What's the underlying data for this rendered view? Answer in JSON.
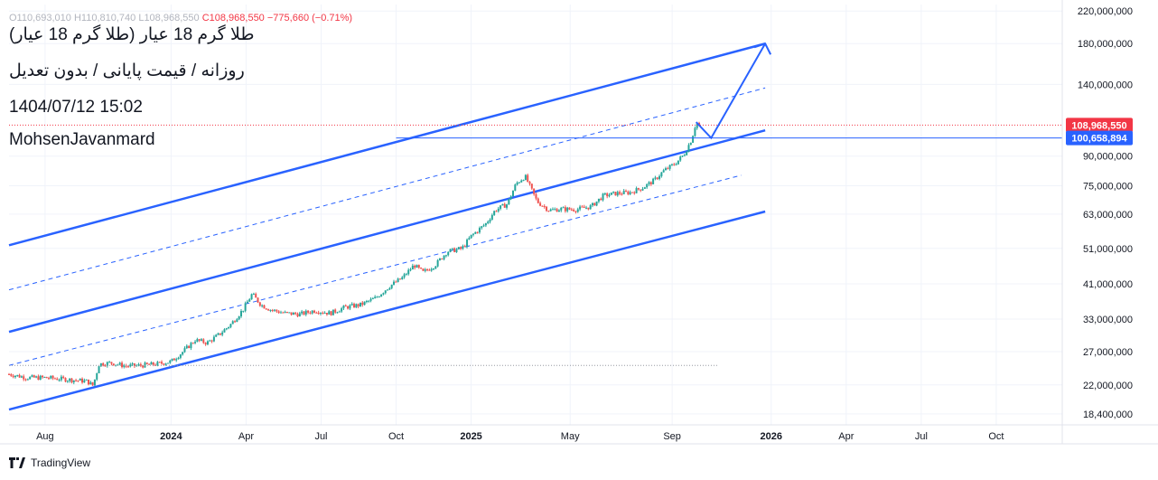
{
  "header": {
    "title": "طلا گرم 18 عیار (طلا گرم 18 عیار)",
    "subtitle": "روزانه / قیمت پایانی / بدون تعدیل",
    "datetime": "1404/07/12 15:02",
    "author": "MohsenJavanmard",
    "ohlc": {
      "prefix": "O110,693,010  H110,810,740  L108,968,550",
      "close": "C108,968,550",
      "change": "−775,660 (−0.71%)"
    }
  },
  "footer": {
    "brand": "TradingView"
  },
  "colors": {
    "up": "#26a69a",
    "down": "#ef5350",
    "channel": "#2962ff",
    "price_badge": "#f23645",
    "level_badge": "#2962ff",
    "grid": "#f0f3fa"
  },
  "chart_data": {
    "type": "candlestick",
    "y_scale": "log",
    "ylim": [
      17200000,
      229000000
    ],
    "y_ticks": [
      {
        "label": "220,000,000",
        "value": 220000000
      },
      {
        "label": "180,000,000",
        "value": 180000000
      },
      {
        "label": "140,000,000",
        "value": 140000000
      },
      {
        "label": "90,000,000",
        "value": 90000000
      },
      {
        "label": "75,000,000",
        "value": 75000000
      },
      {
        "label": "63,000,000",
        "value": 63000000
      },
      {
        "label": "51,000,000",
        "value": 51000000
      },
      {
        "label": "41,000,000",
        "value": 41000000
      },
      {
        "label": "33,000,000",
        "value": 33000000
      },
      {
        "label": "27,000,000",
        "value": 27000000
      },
      {
        "label": "22,000,000",
        "value": 22000000
      },
      {
        "label": "18,400,000",
        "value": 18400000
      }
    ],
    "x_ticks": [
      {
        "label": "Aug",
        "t": 2023.58,
        "bold": false
      },
      {
        "label": "2024",
        "t": 2024.0,
        "bold": true
      },
      {
        "label": "Apr",
        "t": 2024.25,
        "bold": false
      },
      {
        "label": "Jul",
        "t": 2024.5,
        "bold": false
      },
      {
        "label": "Oct",
        "t": 2024.75,
        "bold": false
      },
      {
        "label": "2025",
        "t": 2025.0,
        "bold": true
      },
      {
        "label": "May",
        "t": 2025.33,
        "bold": false
      },
      {
        "label": "Sep",
        "t": 2025.67,
        "bold": false
      },
      {
        "label": "2026",
        "t": 2026.0,
        "bold": true
      },
      {
        "label": "Apr",
        "t": 2026.25,
        "bold": false
      },
      {
        "label": "Jul",
        "t": 2026.5,
        "bold": false
      },
      {
        "label": "Oct",
        "t": 2026.75,
        "bold": false
      }
    ],
    "xlim": [
      2023.46,
      2026.97
    ],
    "price_path": [
      [
        2023.46,
        23500000
      ],
      [
        2023.52,
        23000000
      ],
      [
        2023.58,
        23000000
      ],
      [
        2023.64,
        22800000
      ],
      [
        2023.72,
        22500000
      ],
      [
        2023.74,
        21900000
      ],
      [
        2023.76,
        25000000
      ],
      [
        2023.8,
        25200000
      ],
      [
        2023.85,
        24700000
      ],
      [
        2023.9,
        24800000
      ],
      [
        2023.95,
        25000000
      ],
      [
        2024.0,
        25400000
      ],
      [
        2024.04,
        27000000
      ],
      [
        2024.08,
        29000000
      ],
      [
        2024.12,
        28500000
      ],
      [
        2024.16,
        30000000
      ],
      [
        2024.2,
        32000000
      ],
      [
        2024.24,
        35000000
      ],
      [
        2024.27,
        38500000
      ],
      [
        2024.3,
        36000000
      ],
      [
        2024.33,
        35000000
      ],
      [
        2024.38,
        34200000
      ],
      [
        2024.43,
        34000000
      ],
      [
        2024.48,
        34800000
      ],
      [
        2024.53,
        34200000
      ],
      [
        2024.58,
        35500000
      ],
      [
        2024.63,
        36000000
      ],
      [
        2024.68,
        37500000
      ],
      [
        2024.73,
        40500000
      ],
      [
        2024.77,
        42500000
      ],
      [
        2024.81,
        46000000
      ],
      [
        2024.84,
        44000000
      ],
      [
        2024.88,
        46000000
      ],
      [
        2024.92,
        50000000
      ],
      [
        2024.97,
        51000000
      ],
      [
        2025.0,
        55000000
      ],
      [
        2025.05,
        59500000
      ],
      [
        2025.08,
        64500000
      ],
      [
        2025.12,
        67000000
      ],
      [
        2025.15,
        76000000
      ],
      [
        2025.18,
        79500000
      ],
      [
        2025.22,
        68000000
      ],
      [
        2025.26,
        64500000
      ],
      [
        2025.3,
        65000000
      ],
      [
        2025.35,
        64800000
      ],
      [
        2025.4,
        66000000
      ],
      [
        2025.44,
        70500000
      ],
      [
        2025.48,
        71500000
      ],
      [
        2025.53,
        72000000
      ],
      [
        2025.57,
        74000000
      ],
      [
        2025.61,
        77500000
      ],
      [
        2025.64,
        82000000
      ],
      [
        2025.68,
        86000000
      ],
      [
        2025.71,
        91000000
      ],
      [
        2025.735,
        100000000
      ],
      [
        2025.75,
        111000000
      ],
      [
        2025.76,
        108968550
      ]
    ],
    "channel_lines": [
      {
        "name": "upper",
        "style": "solid",
        "p1": [
          2023.46,
          52000000
        ],
        "p2": [
          2025.98,
          180000000
        ]
      },
      {
        "name": "upper-mid",
        "style": "dashed",
        "p1": [
          2023.46,
          39500000
        ],
        "p2": [
          2025.98,
          137000000
        ]
      },
      {
        "name": "middle",
        "style": "solid",
        "p1": [
          2023.46,
          30500000
        ],
        "p2": [
          2025.98,
          105500000
        ]
      },
      {
        "name": "lower-mid",
        "style": "dashed",
        "p1": [
          2023.46,
          24800000
        ],
        "p2": [
          2025.9,
          80000000
        ]
      },
      {
        "name": "lower",
        "style": "solid",
        "p1": [
          2023.46,
          18900000
        ],
        "p2": [
          2025.98,
          64000000
        ]
      }
    ],
    "projection_path": [
      [
        2025.75,
        111000000
      ],
      [
        2025.8,
        100658894
      ],
      [
        2025.98,
        180000000
      ]
    ],
    "base_level": 24800000,
    "current_price": {
      "value": 108968550,
      "label": "108,968,550"
    },
    "level": {
      "value": 100658894,
      "label": "100,658,894"
    }
  }
}
